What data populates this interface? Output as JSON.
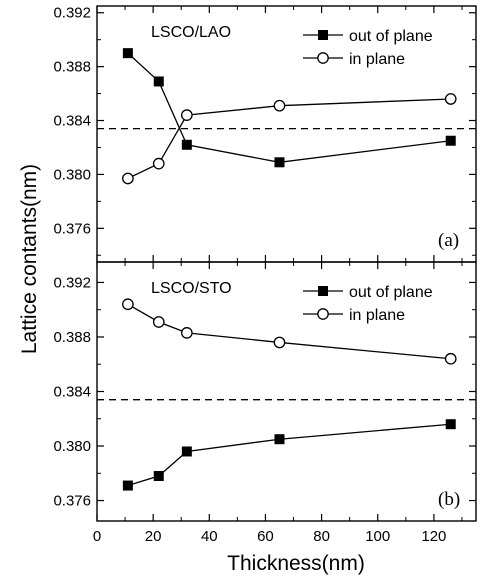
{
  "chart_data": {
    "type": "line",
    "ylabel": "Lattice contants(nm)",
    "xlabel": "Thickness(nm)",
    "xlim": [
      0,
      135
    ],
    "x_ticks": [
      "0",
      "20",
      "40",
      "60",
      "80",
      "100",
      "120"
    ],
    "panels": [
      {
        "title": "LSCO/LAO",
        "tag": "(a)",
        "ylim": [
          0.3735,
          0.3925
        ],
        "y_ticks": [
          "0.376",
          "0.380",
          "0.384",
          "0.388",
          "0.392"
        ],
        "reference_line": 0.3834,
        "legend_position": "top-right",
        "x": [
          11,
          22,
          32,
          65,
          126
        ],
        "series": [
          {
            "name": "out of plane",
            "marker": "filled-square",
            "values": [
              0.389,
              0.3869,
              0.3822,
              0.3809,
              0.3825
            ]
          },
          {
            "name": "in plane",
            "marker": "open-circle",
            "values": [
              0.3797,
              0.3808,
              0.3844,
              0.3851,
              0.3856
            ]
          }
        ]
      },
      {
        "title": "LSCO/STO",
        "tag": "(b)",
        "ylim": [
          0.3745,
          0.3935
        ],
        "y_ticks": [
          "0.376",
          "0.380",
          "0.384",
          "0.388",
          "0.392"
        ],
        "reference_line": 0.3834,
        "legend_position": "top-right",
        "x": [
          11,
          22,
          32,
          65,
          126
        ],
        "series": [
          {
            "name": "out of plane",
            "marker": "filled-square",
            "values": [
              0.3771,
              0.3778,
              0.3796,
              0.3805,
              0.3816
            ]
          },
          {
            "name": "in plane",
            "marker": "open-circle",
            "values": [
              0.3904,
              0.3891,
              0.3883,
              0.3876,
              0.3864
            ]
          }
        ]
      }
    ]
  }
}
